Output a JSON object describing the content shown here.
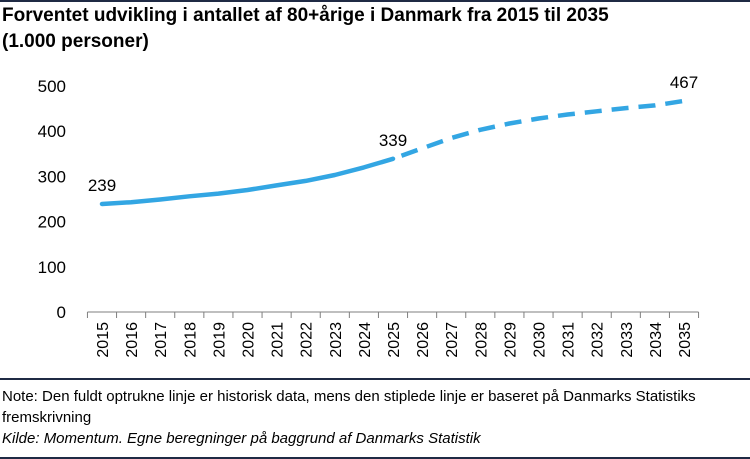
{
  "title_line1": "Forventet udvikling i antallet af 80+årige i Danmark fra 2015 til 2035",
  "title_line2": "(1.000 personer)",
  "note": "Note: Den fuldt optrukne linje er historisk data, mens den stiplede linje er baseret på Danmarks Statistiks fremskrivning",
  "source": "Kilde: Momentum. Egne beregninger på baggrund af Danmarks Statistik",
  "colors": {
    "line": "#33a6e3"
  },
  "chart_data": {
    "type": "line",
    "title": "Forventet udvikling i antallet af 80+årige i Danmark fra 2015 til 2035 (1.000 personer)",
    "xlabel": "",
    "ylabel": "",
    "ylim": [
      0,
      500
    ],
    "yticks": [
      0,
      100,
      200,
      300,
      400,
      500
    ],
    "grid": false,
    "legend": "none",
    "x": [
      "2015",
      "2016",
      "2017",
      "2018",
      "2019",
      "2020",
      "2021",
      "2022",
      "2023",
      "2024",
      "2025",
      "2026",
      "2027",
      "2028",
      "2029",
      "2030",
      "2031",
      "2032",
      "2033",
      "2034",
      "2035"
    ],
    "series": [
      {
        "style": "solid",
        "x": [
          "2015",
          "2016",
          "2017",
          "2018",
          "2019",
          "2020",
          "2021",
          "2022",
          "2023",
          "2024",
          "2025"
        ],
        "values": [
          239,
          243,
          249,
          256,
          262,
          270,
          280,
          290,
          303,
          320,
          339
        ]
      },
      {
        "style": "dashed",
        "x": [
          "2025",
          "2026",
          "2027",
          "2028",
          "2029",
          "2030",
          "2031",
          "2032",
          "2033",
          "2034",
          "2035"
        ],
        "values": [
          339,
          362,
          385,
          403,
          417,
          428,
          437,
          444,
          451,
          457,
          467
        ]
      }
    ],
    "annotations": [
      {
        "x": "2015",
        "value": 239,
        "text": "239"
      },
      {
        "x": "2025",
        "value": 339,
        "text": "339"
      },
      {
        "x": "2035",
        "value": 467,
        "text": "467"
      }
    ]
  }
}
